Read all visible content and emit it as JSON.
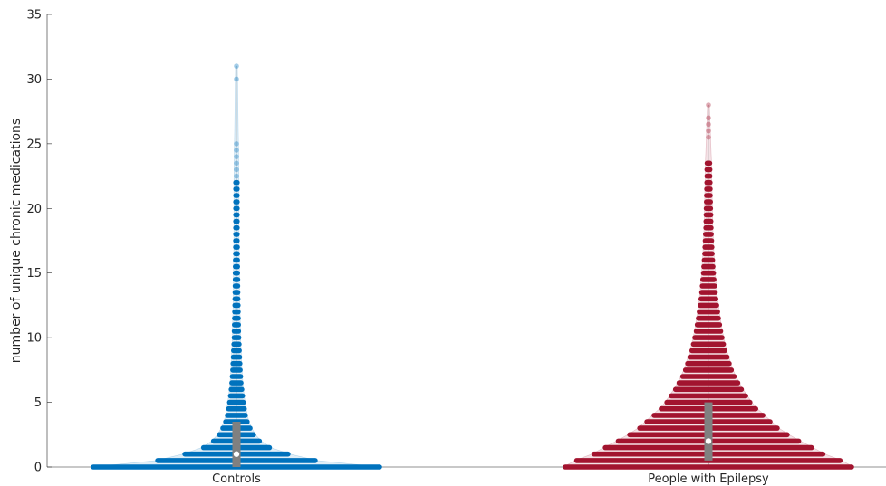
{
  "chart_data": {
    "type": "violin-swarm",
    "title": "",
    "xlabel": "",
    "ylabel": "number of unique chronic medications",
    "ylim": [
      0,
      35
    ],
    "yticks": [
      0,
      5,
      10,
      15,
      20,
      25,
      30,
      35
    ],
    "grid": false,
    "categories": [
      "Controls",
      "People with Epilepsy"
    ],
    "series": [
      {
        "category": "Controls",
        "color": "#0072BD",
        "median": 1,
        "q1": 0,
        "q3": 3.5,
        "bin_step": 0.5,
        "density_to_max": [
          1.0,
          0.55,
          0.36,
          0.23,
          0.16,
          0.12,
          0.095,
          0.075,
          0.063,
          0.055,
          0.048,
          0.042,
          0.037,
          0.032,
          0.029,
          0.026,
          0.024,
          0.022,
          0.02,
          0.018,
          0.016,
          0.015,
          0.014,
          0.013,
          0.012,
          0.011,
          0.01,
          0.0095,
          0.009,
          0.0085,
          0.008,
          0.0075,
          0.007,
          0.0065,
          0.006,
          0.0055,
          0.005,
          0.005,
          0.005,
          0.005,
          0.005,
          0.005,
          0.005,
          0.005,
          0.005
        ],
        "outliers": [
          22.5,
          23,
          23.5,
          24,
          24.5,
          25,
          30,
          31
        ]
      },
      {
        "category": "People with Epilepsy",
        "color": "#A2142F",
        "median": 2,
        "q1": 0.5,
        "q3": 5,
        "bin_step": 0.5,
        "density_to_max": [
          1.0,
          0.92,
          0.8,
          0.72,
          0.63,
          0.55,
          0.48,
          0.43,
          0.38,
          0.33,
          0.29,
          0.26,
          0.23,
          0.205,
          0.18,
          0.16,
          0.145,
          0.13,
          0.115,
          0.105,
          0.095,
          0.085,
          0.078,
          0.07,
          0.064,
          0.058,
          0.052,
          0.047,
          0.043,
          0.039,
          0.035,
          0.032,
          0.029,
          0.026,
          0.024,
          0.022,
          0.02,
          0.018,
          0.017,
          0.016,
          0.015,
          0.014,
          0.013,
          0.012,
          0.011,
          0.01,
          0.01,
          0.009
        ],
        "outliers": [
          21,
          21.5,
          22,
          22.5,
          23,
          25.5,
          26,
          26.5,
          27,
          28
        ]
      }
    ]
  }
}
